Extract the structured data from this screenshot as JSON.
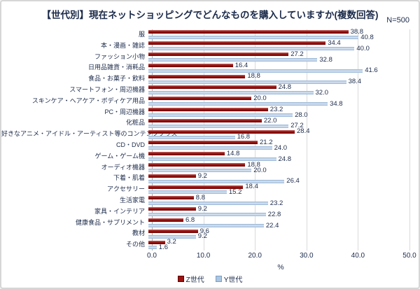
{
  "chart_data": {
    "type": "bar",
    "orientation": "horizontal",
    "title": "【世代別】現在ネットショッピングでどんなものを購入していますか(複数回答)",
    "n_label": "N=500",
    "categories": [
      "服",
      "本・漫画・雑誌",
      "ファッション小物",
      "日用品雑貨・消耗品",
      "食品・お菓子・飲料",
      "スマートフォン・周辺機器",
      "スキンケア・ヘアケア・ボディケア用品",
      "PC・周辺機器",
      "化粧品",
      "好きなアニメ・アイドル・アーティスト等のコンテンツグッズ",
      "CD・DVD",
      "ゲーム・ゲーム機",
      "オーディオ機器",
      "下着・肌着",
      "アクセサリー",
      "生活家電",
      "家具・インテリア",
      "健康食品・サプリメント",
      "教材",
      "その他"
    ],
    "series": [
      {
        "name": "Z世代",
        "color": "#9c1311",
        "values": [
          38.8,
          34.4,
          27.2,
          16.4,
          18.8,
          24.8,
          20.0,
          23.2,
          22.0,
          28.4,
          21.2,
          14.8,
          18.8,
          9.2,
          18.4,
          8.8,
          9.2,
          6.8,
          9.6,
          3.2
        ]
      },
      {
        "name": "Y世代",
        "color": "#aac6e1",
        "values": [
          40.8,
          40.0,
          32.8,
          41.6,
          38.4,
          32.0,
          34.8,
          28.0,
          27.2,
          16.8,
          24.0,
          24.8,
          20.0,
          26.4,
          15.2,
          23.2,
          22.8,
          22.4,
          9.2,
          1.6
        ]
      }
    ],
    "xlabel": "%",
    "xlim": [
      0,
      50
    ],
    "xticks": [
      "0.0",
      "10.0",
      "20.0",
      "30.0",
      "40.0",
      "50.0"
    ],
    "grid": true,
    "legend_position": "bottom"
  },
  "colors": {
    "text": "#1b2a4a",
    "grid": "#dadada",
    "axis": "#ababab",
    "z_bar": "#9c1311",
    "y_bar": "#aac6e1",
    "frame_border": "#d6d6d6"
  }
}
